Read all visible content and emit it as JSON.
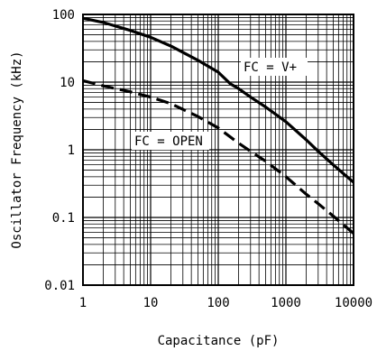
{
  "chart_data": {
    "type": "line",
    "title": "",
    "xlabel": "Capacitance (pF)",
    "ylabel": "Oscillator Frequency (kHz)",
    "x_scale": "log",
    "y_scale": "log",
    "xlim": [
      1,
      10000
    ],
    "ylim": [
      0.01,
      100
    ],
    "x_ticks": [
      1,
      10,
      100,
      1000,
      10000
    ],
    "y_ticks": [
      0.01,
      0.1,
      1,
      10,
      100
    ],
    "x_tick_labels": [
      "1",
      "10",
      "100",
      "1000",
      "10000"
    ],
    "y_tick_labels": [
      "0.01",
      "0.1",
      "1",
      "10",
      "100"
    ],
    "grid": true,
    "legend": "none (inline curve labels)",
    "series": [
      {
        "name": "FC = V+",
        "style": "solid",
        "x": [
          1,
          2,
          5,
          10,
          20,
          50,
          100,
          150,
          200,
          300,
          500,
          1000,
          2000,
          3000,
          5000,
          10000
        ],
        "y": [
          88,
          76,
          58,
          46,
          34,
          21,
          14,
          9.5,
          8,
          6,
          4.3,
          2.6,
          1.4,
          0.95,
          0.6,
          0.33
        ]
      },
      {
        "name": "FC = OPEN",
        "style": "dashed",
        "x": [
          1,
          2,
          5,
          10,
          20,
          50,
          100,
          200,
          300,
          500,
          1000,
          2000,
          3000,
          5000,
          10000
        ],
        "y": [
          10.5,
          8.8,
          7.2,
          6,
          4.8,
          3.1,
          2.1,
          1.25,
          0.95,
          0.68,
          0.4,
          0.22,
          0.16,
          0.105,
          0.058
        ]
      }
    ]
  }
}
